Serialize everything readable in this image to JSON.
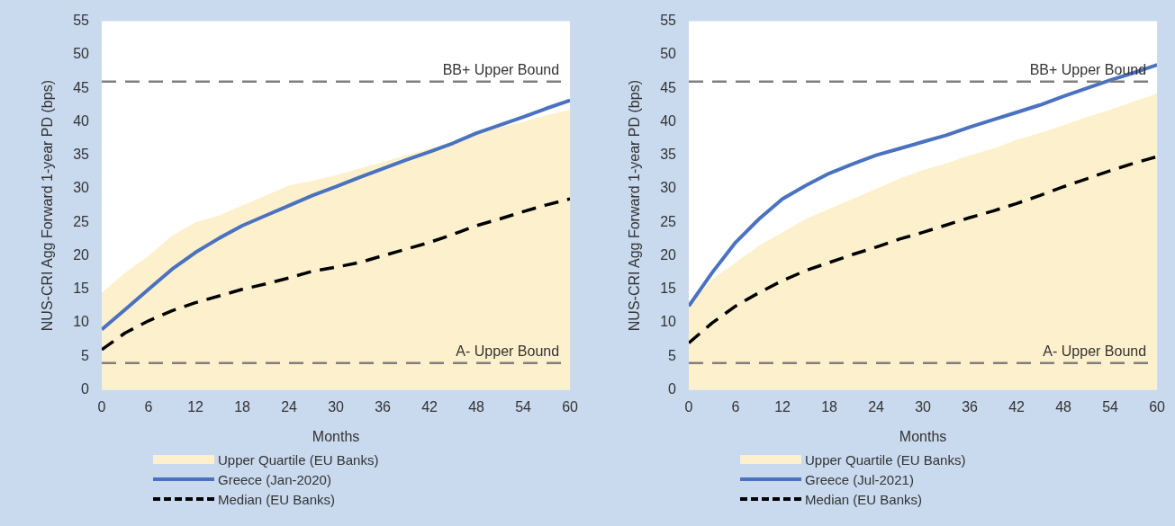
{
  "chart_data": [
    {
      "type": "line",
      "xlabel": "Months",
      "ylabel": "NUS-CRI Agg Forward 1-year PD (bps)",
      "x": [
        0,
        3,
        6,
        9,
        12,
        15,
        18,
        21,
        24,
        27,
        30,
        33,
        36,
        39,
        42,
        45,
        48,
        51,
        54,
        57,
        60
      ],
      "xlim": [
        0,
        60
      ],
      "xticks": [
        0,
        6,
        12,
        18,
        24,
        30,
        36,
        42,
        48,
        54,
        60
      ],
      "ylim": [
        0,
        55
      ],
      "yticks": [
        0,
        5,
        10,
        15,
        20,
        25,
        30,
        35,
        40,
        45,
        50,
        55
      ],
      "grid": false,
      "legend": "bottom",
      "marker": "none",
      "series": [
        {
          "name": "Upper Quartile (EU Banks)",
          "type": "area",
          "color": "#fdf0cc",
          "values": [
            14.5,
            17.5,
            20,
            23,
            25,
            26,
            27.5,
            29,
            30.5,
            31.2,
            32,
            33,
            34,
            35,
            36,
            37,
            38.3,
            39.2,
            40,
            41,
            41.8
          ]
        },
        {
          "name": "Greece (Jan-2020)",
          "type": "line",
          "color": "#4a72c0",
          "values": [
            9,
            12,
            15,
            18,
            20.5,
            22.6,
            24.5,
            26,
            27.5,
            29,
            30.3,
            31.7,
            33,
            34.3,
            35.5,
            36.8,
            38.3,
            39.5,
            40.7,
            42,
            43.2
          ]
        },
        {
          "name": "Median (EU Banks)",
          "type": "line",
          "line_style": "dashed",
          "color": "#000000",
          "values": [
            6,
            8.5,
            10.3,
            11.8,
            13,
            14,
            15,
            15.8,
            16.7,
            17.7,
            18.3,
            19,
            20,
            21,
            22,
            23.2,
            24.5,
            25.5,
            26.6,
            27.6,
            28.5
          ]
        }
      ],
      "ref_lines": [
        {
          "axis": "y",
          "value": 46,
          "label": "BB+ Upper Bound",
          "color": "#7f7f7f",
          "line_style": "dashed"
        },
        {
          "axis": "y",
          "value": 4,
          "label": "A- Upper Bound",
          "color": "#7f7f7f",
          "line_style": "dashed"
        }
      ]
    },
    {
      "type": "line",
      "xlabel": "Months",
      "ylabel": "NUS-CRI Agg Forward 1-year PD (bps)",
      "x": [
        0,
        3,
        6,
        9,
        12,
        15,
        18,
        21,
        24,
        27,
        30,
        33,
        36,
        39,
        42,
        45,
        48,
        51,
        54,
        57,
        60
      ],
      "xlim": [
        0,
        60
      ],
      "xticks": [
        0,
        6,
        12,
        18,
        24,
        30,
        36,
        42,
        48,
        54,
        60
      ],
      "ylim": [
        0,
        55
      ],
      "yticks": [
        0,
        5,
        10,
        15,
        20,
        25,
        30,
        35,
        40,
        45,
        50,
        55
      ],
      "grid": false,
      "legend": "bottom",
      "marker": "none",
      "series": [
        {
          "name": "Upper Quartile (EU Banks)",
          "type": "area",
          "color": "#fdf0cc",
          "values": [
            12.5,
            16.5,
            19,
            21.5,
            23.5,
            25.5,
            27,
            28.5,
            30,
            31.5,
            32.8,
            33.8,
            35,
            36,
            37.3,
            38.3,
            39.5,
            40.7,
            41.8,
            43,
            44.2
          ]
        },
        {
          "name": "Greece (Jul-2021)",
          "type": "line",
          "color": "#4a72c0",
          "values": [
            12.5,
            17.5,
            22,
            25.5,
            28.5,
            30.5,
            32.3,
            33.7,
            35,
            36,
            37,
            38,
            39.2,
            40.3,
            41.4,
            42.5,
            43.8,
            45,
            46.2,
            47.3,
            48.5
          ]
        },
        {
          "name": "Median (EU Banks)",
          "type": "line",
          "line_style": "dashed",
          "color": "#000000",
          "values": [
            7,
            10,
            12.5,
            14.5,
            16.3,
            17.8,
            19,
            20.2,
            21.3,
            22.5,
            23.5,
            24.6,
            25.7,
            26.7,
            27.8,
            29,
            30.3,
            31.5,
            32.7,
            33.8,
            34.8
          ]
        }
      ],
      "ref_lines": [
        {
          "axis": "y",
          "value": 46,
          "label": "BB+ Upper Bound",
          "color": "#7f7f7f",
          "line_style": "dashed"
        },
        {
          "axis": "y",
          "value": 4,
          "label": "A- Upper Bound",
          "color": "#7f7f7f",
          "line_style": "dashed"
        }
      ]
    }
  ]
}
